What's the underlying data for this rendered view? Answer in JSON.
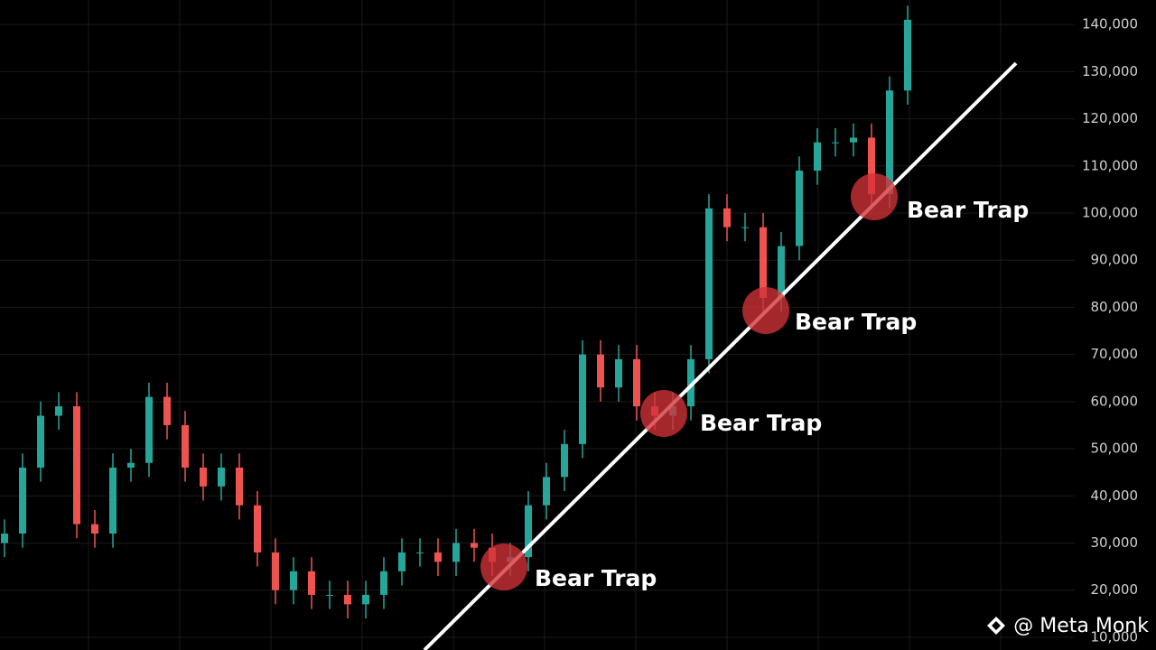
{
  "chart_data": {
    "type": "candlestick",
    "open": [
      30000,
      32000,
      46000,
      57000,
      59000,
      34000,
      32000,
      46000,
      47000,
      61000,
      55000,
      46000,
      42000,
      46000,
      38000,
      28000,
      20000,
      24000,
      19000,
      19000,
      17000,
      19000,
      24000,
      28000,
      28000,
      26000,
      30000,
      29000,
      26000,
      27000,
      38000,
      44000,
      51000,
      70000,
      63000,
      69000,
      59000,
      57000,
      59000,
      69000,
      101000,
      97000,
      97000,
      82000,
      93000,
      109000,
      115000,
      115000,
      116000,
      104000,
      126000
    ],
    "high": [
      35000,
      49000,
      60000,
      62000,
      62000,
      37000,
      49000,
      50000,
      64000,
      64000,
      58000,
      49000,
      49000,
      49000,
      41000,
      31000,
      27000,
      27000,
      22000,
      22000,
      22000,
      27000,
      31000,
      31000,
      31000,
      33000,
      33000,
      32000,
      30000,
      41000,
      47000,
      54000,
      73000,
      73000,
      72000,
      72000,
      62000,
      62000,
      72000,
      104000,
      104000,
      100000,
      100000,
      96000,
      112000,
      118000,
      118000,
      119000,
      119000,
      129000,
      144000
    ],
    "low": [
      27000,
      29000,
      43000,
      54000,
      31000,
      29000,
      29000,
      43000,
      44000,
      52000,
      43000,
      39000,
      39000,
      35000,
      25000,
      17000,
      17000,
      16000,
      16000,
      14000,
      14000,
      16000,
      21000,
      25000,
      23000,
      23000,
      26000,
      23000,
      23000,
      24000,
      35000,
      41000,
      48000,
      60000,
      60000,
      56000,
      54000,
      54000,
      56000,
      66000,
      94000,
      94000,
      79000,
      79000,
      90000,
      106000,
      112000,
      112000,
      101000,
      101000,
      123000
    ],
    "close": [
      32000,
      46000,
      57000,
      59000,
      34000,
      32000,
      46000,
      47000,
      61000,
      55000,
      46000,
      42000,
      46000,
      38000,
      28000,
      20000,
      24000,
      19000,
      19000,
      17000,
      19000,
      24000,
      28000,
      28000,
      26000,
      30000,
      29000,
      26000,
      27000,
      38000,
      44000,
      51000,
      70000,
      63000,
      69000,
      59000,
      57000,
      59000,
      69000,
      101000,
      97000,
      97000,
      82000,
      93000,
      109000,
      115000,
      115000,
      116000,
      104000,
      126000,
      141000
    ],
    "up_color": "#26a69a",
    "down_color": "#ef5350",
    "ylim": [
      7300,
      145200
    ],
    "yticks": [
      {
        "value": 10000,
        "label": "10,000"
      },
      {
        "value": 20000,
        "label": "20,000"
      },
      {
        "value": 30000,
        "label": "30,000"
      },
      {
        "value": 40000,
        "label": "40,000"
      },
      {
        "value": 50000,
        "label": "50,000"
      },
      {
        "value": 60000,
        "label": "60,000"
      },
      {
        "value": 70000,
        "label": "70,000"
      },
      {
        "value": 80000,
        "label": "80,000"
      },
      {
        "value": 90000,
        "label": "90,000"
      },
      {
        "value": 100000,
        "label": "100,000"
      },
      {
        "value": 110000,
        "label": "110,000"
      },
      {
        "value": 120000,
        "label": "120,000"
      },
      {
        "value": 130000,
        "label": "130,000"
      },
      {
        "value": 140000,
        "label": "140,000"
      }
    ],
    "grid": true,
    "annotations": [
      "Bear Trap",
      "Bear Trap",
      "Bear Trap",
      "Bear Trap"
    ],
    "watermark": "@ Meta Monk"
  }
}
